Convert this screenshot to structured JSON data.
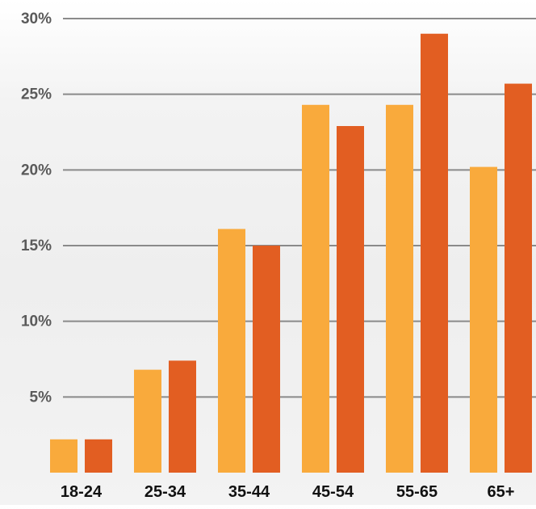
{
  "colors": {
    "series_light": "#F9AA3C",
    "series_dark": "#E25E22",
    "gridline": "#8a8a8a",
    "label_text": "#5a5a5a",
    "category_text": "#111111"
  },
  "chart_data": {
    "type": "bar",
    "categories": [
      "18-24",
      "25-34",
      "35-44",
      "45-54",
      "55-65",
      "65+"
    ],
    "series": [
      {
        "color": "#F9AA3C",
        "values": [
          2.2,
          6.8,
          16.1,
          24.3,
          24.3,
          20.2
        ]
      },
      {
        "color": "#E25E22",
        "values": [
          2.2,
          7.4,
          15.0,
          22.9,
          29.0,
          25.7
        ]
      }
    ],
    "y_ticks": [
      {
        "value": 5,
        "label": "5%"
      },
      {
        "value": 10,
        "label": "10%"
      },
      {
        "value": 15,
        "label": "15%"
      },
      {
        "value": 20,
        "label": "20%"
      },
      {
        "value": 25,
        "label": "25%"
      },
      {
        "value": 30,
        "label": "30%"
      }
    ],
    "ylim": [
      0,
      30
    ],
    "grid": true,
    "legend": "none"
  }
}
